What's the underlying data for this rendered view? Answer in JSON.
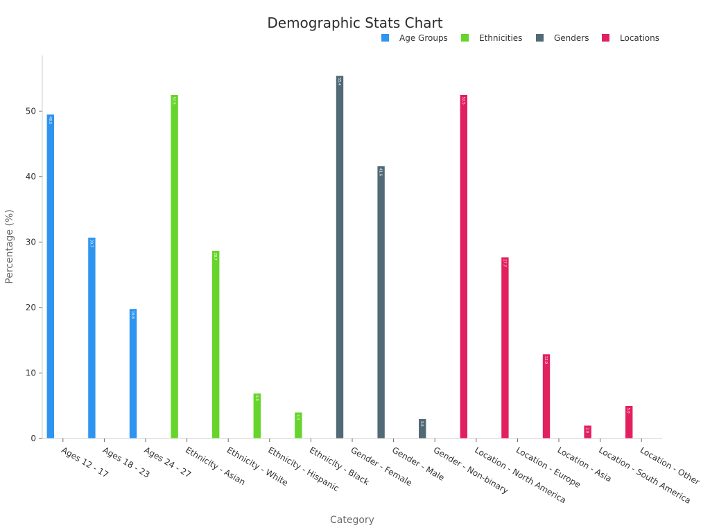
{
  "chart_data": {
    "type": "bar",
    "title": "Demographic Stats Chart",
    "xlabel": "Category",
    "ylabel": "Percentage (%)",
    "ylim": [
      0,
      58.5
    ],
    "yticks": [
      0,
      10,
      20,
      30,
      40,
      50
    ],
    "grid": false,
    "legend_position": "top-right",
    "categories": [
      "Ages 12 - 17",
      "Ages 18 - 23",
      "Ages 24 - 27",
      "Ethnicity - Asian",
      "Ethnicity - White",
      "Ethnicity - Hispanic",
      "Ethnicity - Black",
      "Gender - Female",
      "Gender - Male",
      "Gender - Non-binary",
      "Location - North America",
      "Location - Europe",
      "Location - Asia",
      "Location - South America",
      "Location - Other"
    ],
    "series": [
      {
        "name": "Age Groups",
        "color": "#2f94f0",
        "values": [
          49.5,
          30.7,
          19.8,
          null,
          null,
          null,
          null,
          null,
          null,
          null,
          null,
          null,
          null,
          null,
          null
        ],
        "labels": [
          "49.5",
          "30.7",
          "19.8"
        ]
      },
      {
        "name": "Ethnicities",
        "color": "#66d42a",
        "values": [
          null,
          null,
          null,
          52.5,
          28.7,
          6.9,
          4.0,
          null,
          null,
          null,
          null,
          null,
          null,
          null,
          null
        ],
        "labels": [
          "52.5",
          "28.7",
          "6.9",
          "4.0"
        ]
      },
      {
        "name": "Genders",
        "color": "#526a76",
        "values": [
          null,
          null,
          null,
          null,
          null,
          null,
          null,
          55.4,
          41.6,
          3.0,
          null,
          null,
          null,
          null,
          null
        ],
        "labels": [
          "55.4",
          "41.6",
          "3.0"
        ]
      },
      {
        "name": "Locations",
        "color": "#e21f5f",
        "values": [
          null,
          null,
          null,
          null,
          null,
          null,
          null,
          null,
          null,
          null,
          52.5,
          27.7,
          12.9,
          2.0,
          5.0
        ],
        "labels": [
          "52.5",
          "27.7",
          "12.9",
          "2.0",
          "5.0"
        ]
      }
    ]
  }
}
